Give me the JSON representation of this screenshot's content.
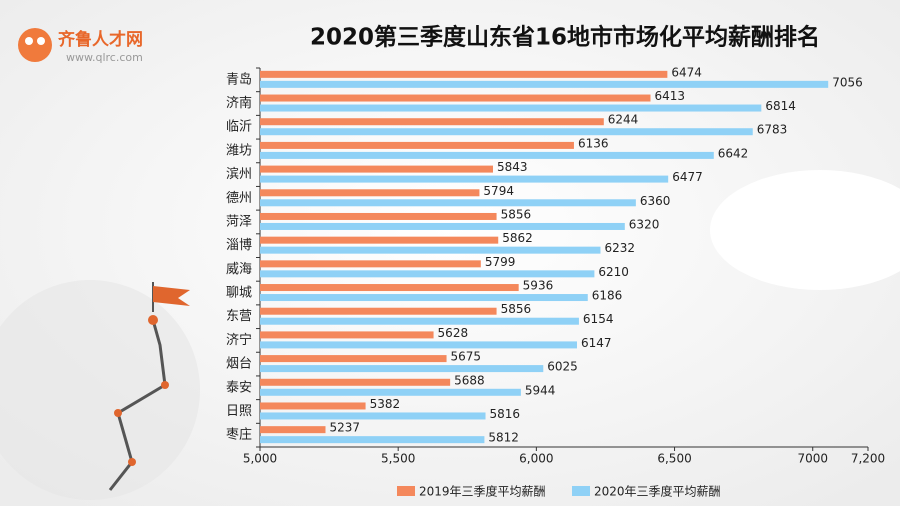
{
  "logo": {
    "name": "齐鲁人才网",
    "url": "www.qlrc.com"
  },
  "chart_data": {
    "type": "hbar",
    "title": "2020第三季度山东省16地市市场化平均薪酬排名",
    "categories": [
      "青岛",
      "济南",
      "临沂",
      "潍坊",
      "滨州",
      "德州",
      "菏泽",
      "淄博",
      "威海",
      "聊城",
      "东营",
      "济宁",
      "烟台",
      "泰安",
      "日照",
      "枣庄"
    ],
    "series": [
      {
        "name": "2019年三季度平均薪酬",
        "color": "#f4885c",
        "values": [
          6474,
          6413,
          6244,
          6136,
          5843,
          5794,
          5856,
          5862,
          5799,
          5936,
          5856,
          5628,
          5675,
          5688,
          5382,
          5237
        ]
      },
      {
        "name": "2020年三季度平均薪酬",
        "color": "#8fd1f6",
        "values": [
          7056,
          6814,
          6783,
          6642,
          6477,
          6360,
          6320,
          6232,
          6210,
          6186,
          6154,
          6147,
          6025,
          5944,
          5816,
          5812
        ]
      }
    ],
    "xlim": [
      5000,
      7200
    ],
    "xticks": [
      {
        "value": 5000,
        "label": "5,000"
      },
      {
        "value": 5500,
        "label": "5,500"
      },
      {
        "value": 6000,
        "label": "6,000"
      },
      {
        "value": 6500,
        "label": "6,500"
      },
      7000,
      {
        "value": 7200,
        "label": "7,200"
      }
    ],
    "legend": "bottom"
  }
}
